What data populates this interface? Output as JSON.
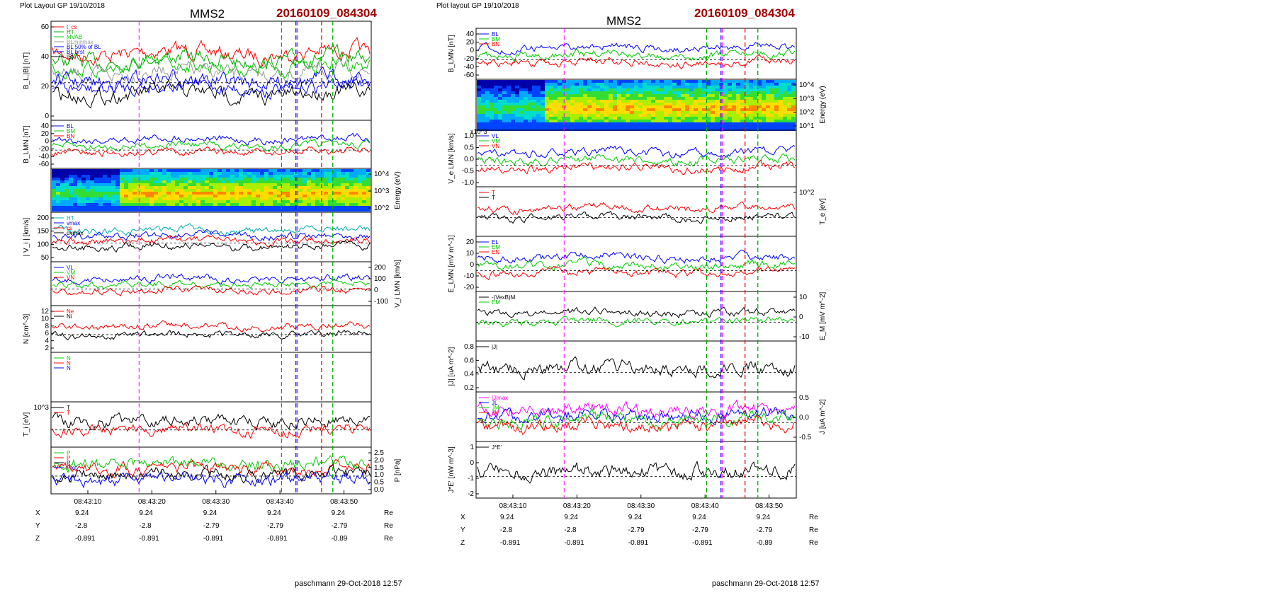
{
  "left": {
    "header": "Plot Layout GP 19/10/2018",
    "spacecraft": "MMS2",
    "event": "20160109_084304",
    "footer": "paschmann 29-Oct-2018 12:57",
    "time_ticks": [
      "08:43:10",
      "08:43:20",
      "08:43:30",
      "08:43:40",
      "08:43:50"
    ],
    "ephemeris": {
      "unit": "Re",
      "rows": [
        {
          "label": "X",
          "values": [
            "9.24",
            "9.24",
            "9.24",
            "9.24",
            "9.24"
          ]
        },
        {
          "label": "Y",
          "values": [
            "-2.8",
            "-2.8",
            "-2.79",
            "-2.79",
            "-2.79"
          ]
        },
        {
          "label": "Z",
          "values": [
            "-0.891",
            "-0.891",
            "-0.891",
            "-0.891",
            "-0.89"
          ]
        }
      ]
    },
    "panels": [
      {
        "ylabel": "B_L,|B| [nT]",
        "ticks_left": [
          "60",
          "40",
          "20",
          "0"
        ],
        "legend": [
          {
            "t": "t_cs",
            "c": "#ff0000"
          },
          {
            "t": "HT",
            "c": "#00aa00"
          },
          {
            "t": "MVAB",
            "c": "#00cc00"
          },
          {
            "t": "BLminmax",
            "c": "#999999"
          },
          {
            "t": "BL 50% of BL",
            "c": "#0000ff"
          },
          {
            "t": "BL brst",
            "c": "#0000ff"
          },
          {
            "t": "|B|",
            "c": "#000000"
          }
        ]
      },
      {
        "ylabel": "B_LMN [nT]",
        "ticks_left": [
          "40",
          "20",
          "0",
          "-20",
          "-40",
          "-60"
        ],
        "legend": [
          {
            "t": "BL",
            "c": "#0000ff"
          },
          {
            "t": "BM",
            "c": "#00cc00"
          },
          {
            "t": "BN",
            "c": "#ff0000"
          }
        ]
      },
      {
        "ylabel_right": "Energy (eV)",
        "ticks_right": [
          "10^4",
          "10^3",
          "10^2"
        ]
      },
      {
        "ylabel": "| V_i | [km/s]",
        "ticks_left": [
          "200",
          "150",
          "100",
          "50"
        ],
        "legend": [
          {
            "t": "HT",
            "c": "#00aaaa"
          },
          {
            "t": "vmax",
            "c": "#0000ff"
          },
          {
            "t": "cs",
            "c": "#ff0000"
          },
          {
            "t": "dvmax",
            "c": "#000000"
          }
        ]
      },
      {
        "ylabel_right": "V_i LMN [km/s]",
        "ticks_right": [
          "200",
          "100",
          "0",
          "-100"
        ],
        "legend": [
          {
            "t": "VL",
            "c": "#0000ff"
          },
          {
            "t": "VM",
            "c": "#00cc00"
          },
          {
            "t": "VN",
            "c": "#ff0000"
          }
        ]
      },
      {
        "ylabel": "N [cm^-3]",
        "ticks_left": [
          "12",
          "10",
          "8",
          "6",
          "4",
          "2"
        ],
        "legend": [
          {
            "t": "Ne",
            "c": "#ff0000"
          },
          {
            "t": "Ni",
            "c": "#000000"
          }
        ]
      },
      {
        "ylabel": "",
        "legend": [
          {
            "t": "N",
            "c": "#00cc00"
          },
          {
            "t": "N",
            "c": "#ff0000"
          },
          {
            "t": "N",
            "c": "#0000ff"
          }
        ]
      },
      {
        "ylabel": "T_i [eV]",
        "ticks_left": [
          "10^3"
        ],
        "legend": [
          {
            "t": "T",
            "c": "#000000"
          },
          {
            "t": "T",
            "c": "#ff0000"
          }
        ]
      },
      {
        "ylabel_right": "P [nPa]",
        "ticks_right": [
          "2.5",
          "2.0",
          "1.5",
          "1.0",
          "0.5",
          "0.0"
        ],
        "legend": [
          {
            "t": "P",
            "c": "#00cc00"
          },
          {
            "t": "P",
            "c": "#ff0000"
          },
          {
            "t": "P",
            "c": "#000000"
          },
          {
            "t": "Ptot",
            "c": "#0000ff"
          }
        ]
      }
    ]
  },
  "right": {
    "header": "Plot layout GP 19/10/2018",
    "spacecraft": "MMS2",
    "event": "20160109_084304",
    "footer": "paschmann 29-Oct-2018 12:57",
    "time_ticks": [
      "08:43:10",
      "08:43:20",
      "08:43:30",
      "08:43:40",
      "08:43:50"
    ],
    "ephemeris": {
      "unit": "Re",
      "rows": [
        {
          "label": "X",
          "values": [
            "9.24",
            "9.24",
            "9.24",
            "9.24",
            "9.24"
          ]
        },
        {
          "label": "Y",
          "values": [
            "-2.8",
            "-2.8",
            "-2.79",
            "-2.79",
            "-2.79"
          ]
        },
        {
          "label": "Z",
          "values": [
            "-0.891",
            "-0.891",
            "-0.891",
            "-0.891",
            "-0.89"
          ]
        }
      ]
    },
    "panels": [
      {
        "ylabel": "B_LMN [nT]",
        "ticks_left": [
          "40",
          "20",
          "0",
          "-20",
          "-40",
          "-60"
        ],
        "legend": [
          {
            "t": "BL",
            "c": "#0000ff"
          },
          {
            "t": "BM",
            "c": "#00cc00"
          },
          {
            "t": "BN",
            "c": "#ff0000"
          }
        ]
      },
      {
        "ylabel_right": "Energy (eV)",
        "ticks_right": [
          "10^4",
          "10^3",
          "10^2",
          "10^1"
        ]
      },
      {
        "ylabel": "V_e LMN [km/s]",
        "ticks_left": [
          "1.0",
          "0.5",
          "0.0",
          "-0.5",
          "-1.0"
        ],
        "scale": "x10^3",
        "legend": [
          {
            "t": "VL",
            "c": "#0000ff"
          },
          {
            "t": "VM",
            "c": "#00cc00"
          },
          {
            "t": "VN",
            "c": "#ff0000"
          }
        ]
      },
      {
        "ylabel_right": "T_e [eV]",
        "ticks_right": [
          "10^2"
        ],
        "legend": [
          {
            "t": "T",
            "c": "#ff0000"
          },
          {
            "t": "T",
            "c": "#000000"
          }
        ]
      },
      {
        "ylabel": "E_LMN [mV m^-1]",
        "ticks_left": [
          "20",
          "10",
          "0",
          "-10",
          "-20"
        ],
        "legend": [
          {
            "t": "EL",
            "c": "#0000ff"
          },
          {
            "t": "EM",
            "c": "#00cc00"
          },
          {
            "t": "EN",
            "c": "#ff0000"
          }
        ]
      },
      {
        "ylabel_right": "E_M [mV m^-2]",
        "ticks_right": [
          "10",
          "0",
          "-10"
        ],
        "legend": [
          {
            "t": "-(VexB)M",
            "c": "#000000"
          },
          {
            "t": "EM",
            "c": "#00cc00"
          }
        ]
      },
      {
        "ylabel": "|J| [uA m^-2]",
        "ticks_left": [
          "0.8",
          "0.6",
          "0.4",
          "0.2"
        ],
        "legend": [
          {
            "t": "|J|",
            "c": "#000000"
          }
        ]
      },
      {
        "ylabel_right": "J [uA m^-2]",
        "ticks_right": [
          "0.5",
          "0.0",
          "-0.5"
        ],
        "legend": [
          {
            "t": "|J|max",
            "c": "#ff00ff"
          },
          {
            "t": "JL",
            "c": "#0000ff"
          },
          {
            "t": "JM",
            "c": "#00cc00"
          },
          {
            "t": "JN",
            "c": "#ff0000"
          }
        ]
      },
      {
        "ylabel": "J*E' [nW m^-3]",
        "ticks_left": [
          "1",
          "0",
          "-1",
          "-2"
        ],
        "legend": [
          {
            "t": "J*E'",
            "c": "#000000"
          }
        ]
      }
    ]
  }
}
